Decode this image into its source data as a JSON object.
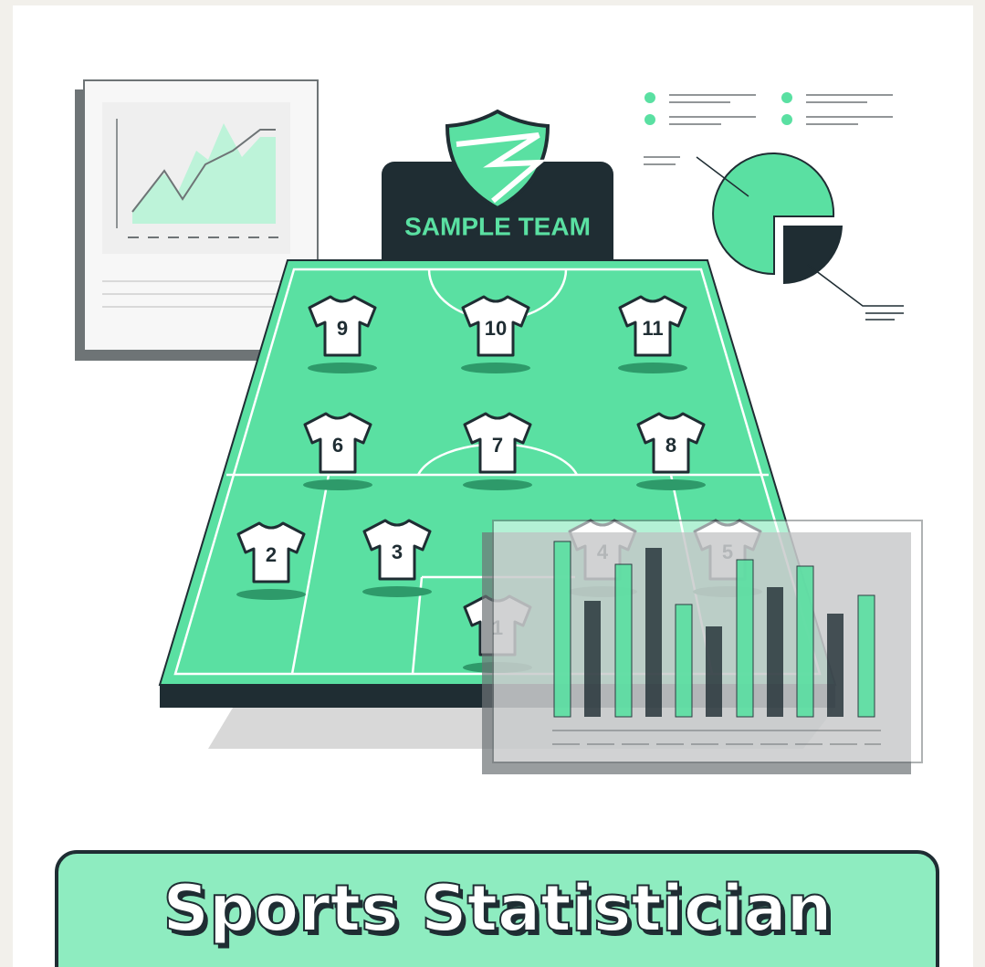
{
  "team": {
    "name": "SAMPLE TEAM"
  },
  "players": [
    {
      "number": 9
    },
    {
      "number": 10
    },
    {
      "number": 11
    },
    {
      "number": 6
    },
    {
      "number": 7
    },
    {
      "number": 8
    },
    {
      "number": 2
    },
    {
      "number": 3
    },
    {
      "number": 4
    },
    {
      "number": 5
    },
    {
      "number": 1
    }
  ],
  "banner": {
    "title": "Sports Statistician"
  }
}
